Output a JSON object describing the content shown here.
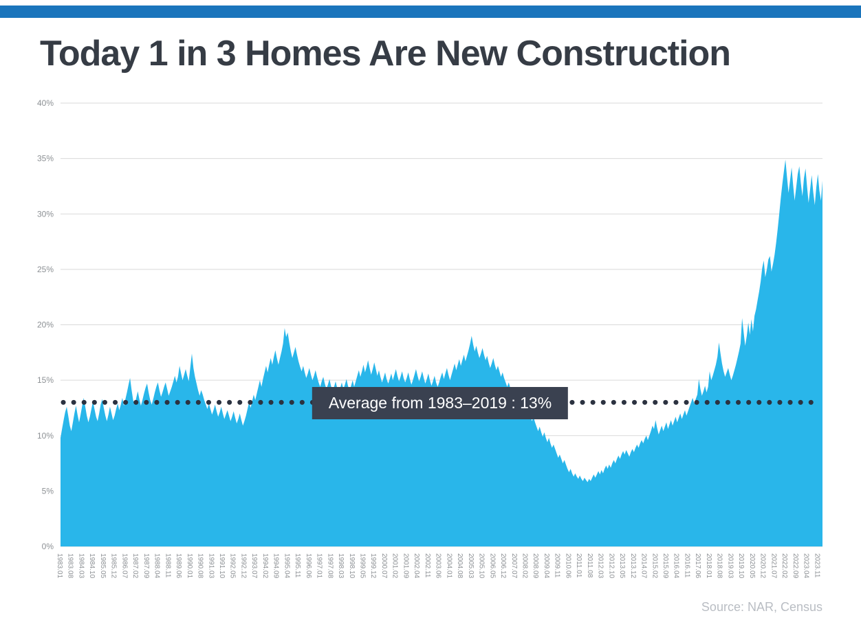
{
  "page": {
    "title": "Today 1 in 3 Homes Are New Construction",
    "source": "Source: NAR, Census"
  },
  "colors": {
    "top_bar": "#1B75BC",
    "title_text": "#363C45",
    "area": "#29B6EA",
    "grid": "#D9D9D9",
    "axis_text": "#8C9094",
    "average_line": "#2B3240",
    "average_label_bg": "#3A4150",
    "source_text": "#B9BDC3"
  },
  "chart_data": {
    "type": "area",
    "title": "Today 1 in 3 Homes Are New Construction",
    "x_start": "1983.01",
    "x_step_months": 1,
    "ylim": [
      0,
      40
    ],
    "grid": true,
    "y_ticks": [
      "0%",
      "5%",
      "10%",
      "15%",
      "20%",
      "25%",
      "30%",
      "35%",
      "40%"
    ],
    "x_tick_every_n_points": 7,
    "x_tick_labels": [
      "1983.01",
      "1983.08",
      "1984.03",
      "1984.10",
      "1985.05",
      "1985.12",
      "1986.07",
      "1987.02",
      "1987.09",
      "1988.04",
      "1988.11",
      "1989.06",
      "1990.01",
      "1990.08",
      "1991.03",
      "1991.10",
      "1992.05",
      "1992.12",
      "1993.07",
      "1994.02",
      "1994.09",
      "1995.04",
      "1995.11",
      "1996.06",
      "1997.01",
      "1997.08",
      "1998.03",
      "1998.10",
      "1999.05",
      "1999.12",
      "2000.07",
      "2001.02",
      "2001.09",
      "2002.04",
      "2002.11",
      "2003.06",
      "2004.01",
      "2004.08",
      "2005.03",
      "2005.10",
      "2006.05",
      "2006.12",
      "2007.07",
      "2008.02",
      "2008.09",
      "2009.04",
      "2009.11",
      "2010.06",
      "2011.01",
      "2011.08",
      "2012.03",
      "2012.10",
      "2013.05",
      "2013.12",
      "2014.07",
      "2015.02",
      "2015.09",
      "2016.04",
      "2016.11",
      "2017.06",
      "2018.01",
      "2018.08",
      "2019.03",
      "2019.10",
      "2020.05",
      "2020.12",
      "2021.07",
      "2022.02",
      "2022.09",
      "2023.04",
      "2023.11"
    ],
    "average_line": {
      "value": 13,
      "label": "Average from 1983–2019 : 13%"
    },
    "values": [
      9.8,
      10.6,
      11.4,
      12.1,
      12.6,
      11.8,
      10.9,
      10.4,
      11.2,
      12.0,
      12.7,
      11.9,
      11.2,
      11.9,
      12.7,
      13.4,
      12.6,
      11.8,
      11.2,
      11.7,
      12.4,
      13.1,
      12.4,
      11.7,
      11.3,
      12.0,
      12.8,
      13.3,
      12.5,
      11.8,
      11.3,
      11.9,
      12.6,
      12.0,
      11.4,
      11.8,
      12.4,
      12.9,
      12.3,
      12.8,
      13.4,
      12.7,
      13.3,
      13.9,
      14.6,
      15.2,
      14.1,
      13.2,
      12.8,
      13.4,
      14.0,
      13.3,
      12.7,
      13.2,
      13.8,
      14.3,
      14.7,
      13.9,
      13.2,
      12.8,
      13.3,
      13.9,
      14.4,
      14.8,
      14.1,
      13.5,
      13.9,
      14.4,
      14.8,
      14.2,
      13.6,
      14.0,
      14.4,
      14.9,
      15.4,
      14.8,
      15.3,
      16.3,
      15.6,
      15.0,
      15.5,
      16.0,
      15.4,
      14.9,
      16.2,
      17.4,
      16.1,
      15.3,
      14.7,
      14.1,
      13.6,
      14.1,
      13.7,
      13.2,
      12.8,
      12.4,
      12.9,
      12.4,
      11.9,
      12.3,
      12.8,
      12.2,
      11.7,
      12.1,
      12.6,
      12.0,
      11.5,
      11.9,
      12.3,
      11.8,
      11.3,
      11.7,
      12.2,
      11.6,
      11.1,
      11.5,
      12.0,
      11.4,
      10.9,
      11.3,
      11.8,
      12.4,
      13.0,
      12.5,
      13.1,
      13.7,
      13.2,
      13.8,
      14.4,
      15.0,
      14.4,
      15.1,
      15.7,
      16.3,
      15.7,
      16.4,
      17.0,
      16.4,
      17.1,
      17.7,
      17.0,
      16.4,
      17.0,
      17.6,
      18.3,
      19.7,
      18.9,
      19.3,
      18.4,
      17.6,
      17.0,
      17.5,
      18.0,
      17.3,
      16.7,
      16.2,
      15.8,
      16.3,
      15.7,
      15.2,
      15.6,
      16.1,
      15.5,
      15.0,
      15.4,
      15.9,
      15.3,
      14.8,
      14.4,
      14.9,
      15.3,
      14.7,
      14.2,
      14.6,
      15.1,
      14.5,
      14.0,
      14.4,
      14.9,
      14.3,
      13.9,
      14.3,
      14.8,
      14.2,
      14.6,
      15.1,
      14.5,
      14.0,
      14.5,
      15.0,
      14.4,
      14.9,
      15.4,
      15.9,
      15.3,
      15.8,
      16.4,
      15.7,
      16.2,
      16.8,
      16.1,
      15.5,
      16.0,
      16.6,
      16.0,
      15.4,
      15.9,
      15.3,
      14.8,
      15.2,
      15.7,
      15.1,
      14.7,
      15.1,
      15.6,
      15.0,
      15.5,
      16.0,
      15.4,
      14.9,
      15.3,
      15.8,
      15.2,
      14.8,
      15.2,
      15.7,
      15.1,
      14.6,
      15.0,
      15.5,
      16.0,
      15.4,
      14.9,
      15.3,
      15.8,
      15.2,
      14.7,
      15.1,
      15.6,
      15.0,
      14.5,
      14.9,
      15.4,
      14.8,
      14.4,
      14.8,
      15.3,
      15.7,
      15.1,
      15.6,
      16.1,
      15.5,
      15.0,
      15.5,
      16.0,
      16.5,
      15.9,
      16.4,
      16.9,
      16.3,
      16.8,
      17.3,
      16.7,
      17.2,
      17.7,
      18.3,
      19.0,
      18.2,
      17.6,
      18.1,
      17.5,
      17.0,
      17.4,
      17.9,
      17.3,
      16.8,
      17.2,
      16.6,
      16.1,
      16.5,
      17.0,
      16.4,
      15.9,
      16.3,
      15.8,
      15.3,
      15.7,
      15.2,
      14.8,
      14.4,
      14.8,
      14.3,
      13.8,
      14.2,
      13.7,
      13.3,
      13.7,
      13.2,
      12.8,
      13.2,
      12.7,
      12.3,
      12.7,
      12.2,
      11.8,
      11.3,
      11.7,
      11.2,
      10.8,
      10.4,
      10.8,
      10.3,
      9.9,
      10.3,
      9.8,
      9.4,
      9.8,
      9.3,
      8.9,
      9.2,
      8.8,
      8.4,
      8.0,
      8.3,
      7.9,
      7.5,
      7.8,
      7.4,
      7.0,
      6.7,
      7.0,
      6.6,
      6.3,
      6.6,
      6.3,
      6.1,
      6.4,
      6.1,
      5.9,
      6.2,
      6.0,
      5.8,
      6.1,
      5.9,
      6.2,
      6.5,
      6.2,
      6.5,
      6.8,
      6.5,
      6.9,
      6.6,
      7.0,
      7.3,
      7.0,
      7.4,
      7.1,
      7.5,
      7.8,
      7.5,
      7.9,
      8.2,
      7.9,
      8.3,
      8.6,
      8.3,
      8.7,
      8.4,
      8.1,
      8.5,
      8.8,
      8.5,
      8.9,
      9.2,
      8.9,
      9.3,
      9.6,
      9.3,
      9.7,
      10.0,
      9.6,
      10.0,
      10.4,
      10.9,
      10.6,
      11.4,
      10.7,
      10.1,
      10.5,
      10.9,
      10.4,
      10.8,
      11.2,
      10.6,
      11.0,
      11.4,
      10.9,
      11.3,
      11.7,
      11.2,
      11.6,
      12.0,
      11.5,
      11.9,
      12.3,
      11.8,
      12.2,
      12.6,
      13.0,
      13.4,
      12.9,
      13.3,
      13.7,
      15.1,
      14.2,
      13.6,
      14.0,
      14.5,
      13.9,
      14.4,
      15.8,
      15.0,
      15.4,
      15.9,
      16.4,
      17.1,
      18.4,
      17.4,
      16.5,
      15.8,
      15.3,
      15.7,
      16.1,
      15.5,
      15.0,
      15.4,
      15.9,
      16.4,
      17.0,
      17.6,
      18.3,
      20.6,
      19.3,
      18.1,
      19.0,
      20.2,
      19.1,
      20.5,
      19.4,
      20.8,
      21.4,
      22.2,
      23.0,
      23.9,
      25.1,
      25.8,
      24.3,
      25.0,
      25.9,
      26.2,
      24.8,
      25.5,
      26.3,
      27.4,
      28.6,
      30.0,
      31.4,
      32.7,
      33.8,
      34.9,
      33.4,
      31.9,
      33.0,
      34.2,
      32.6,
      31.2,
      32.4,
      33.6,
      34.3,
      32.8,
      31.6,
      33.2,
      34.1,
      32.5,
      31.0,
      32.2,
      33.5,
      32.0,
      30.8,
      32.4,
      33.6,
      32.1,
      31.2,
      33.0
    ]
  }
}
